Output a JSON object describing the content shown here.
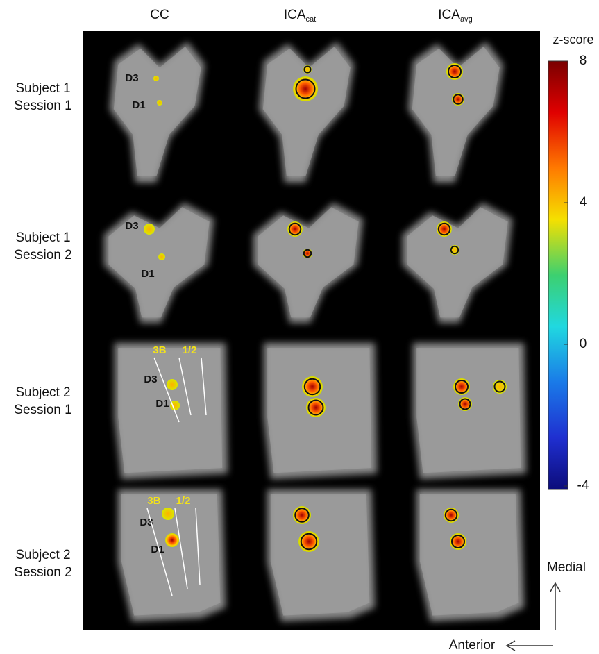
{
  "columns": [
    {
      "label": "CC"
    },
    {
      "label": "ICA",
      "subscript": "cat"
    },
    {
      "label": "ICA",
      "subscript": "avg"
    }
  ],
  "rows": [
    {
      "lines": [
        "Subject 1",
        "Session 1"
      ]
    },
    {
      "lines": [
        "Subject 1",
        "Session 2"
      ]
    },
    {
      "lines": [
        "Subject 2",
        "Session 1"
      ]
    },
    {
      "lines": [
        "Subject 2",
        "Session 2"
      ]
    }
  ],
  "panel_labels": [
    [
      "D3",
      "D1"
    ],
    [
      "D3",
      "D1"
    ],
    [
      "D3",
      "D1",
      "3B",
      "1/2"
    ],
    [
      "D3",
      "D1",
      "3B",
      "1/2"
    ]
  ],
  "colorbar": {
    "title": "z-score",
    "ticks": [
      8,
      4,
      0,
      -4
    ]
  },
  "orientation": {
    "vertical": "Medial",
    "horizontal": "Anterior"
  }
}
